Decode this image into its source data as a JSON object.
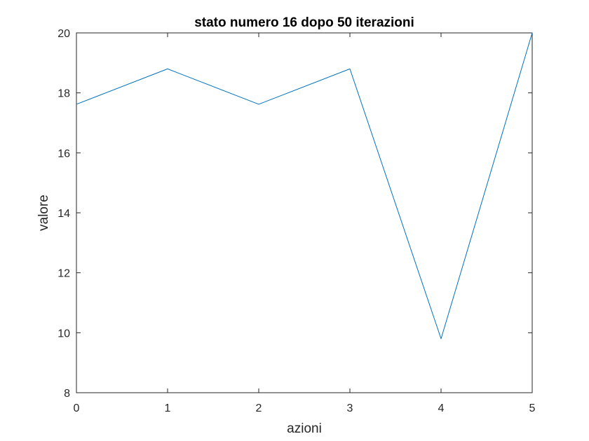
{
  "chart_data": {
    "type": "line",
    "title": "stato numero 16 dopo 50 iterazioni",
    "xlabel": "azioni",
    "ylabel": "valore",
    "x": [
      0,
      1,
      2,
      3,
      4,
      5
    ],
    "series": [
      {
        "values": [
          17.62,
          18.8,
          17.62,
          18.8,
          9.8,
          20.0
        ],
        "color": "#0072BD"
      }
    ],
    "xlim": [
      0,
      5
    ],
    "ylim": [
      8,
      20
    ],
    "xticks": [
      0,
      1,
      2,
      3,
      4,
      5
    ],
    "yticks": [
      8,
      10,
      12,
      14,
      16,
      18,
      20
    ],
    "grid": false,
    "box": true
  },
  "colors": {
    "axes": "#262626",
    "background": "#ffffff"
  }
}
